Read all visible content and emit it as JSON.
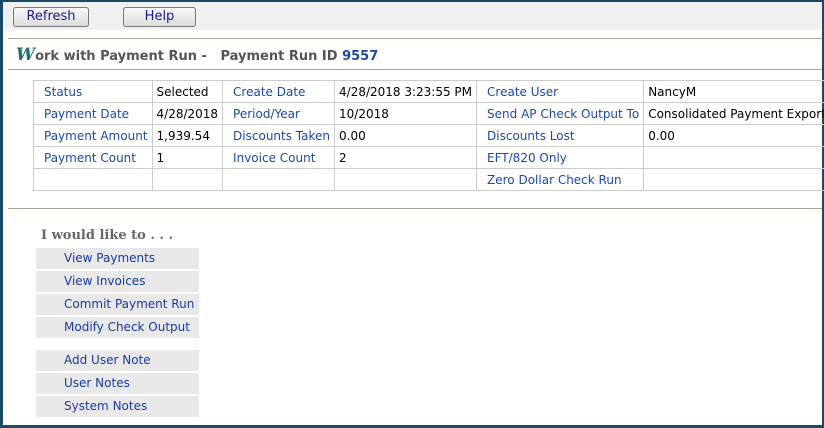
{
  "toolbar": {
    "refresh": "Refresh",
    "help": "Help"
  },
  "header": {
    "title_initial": "W",
    "title_rest": "ork with Payment Run -",
    "id_label": "Payment Run ID",
    "id_value": "9557"
  },
  "details": [
    [
      {
        "l": "Status",
        "v": "Selected"
      },
      {
        "l": "Create Date",
        "v": "4/28/2018 3:23:55 PM"
      },
      {
        "l": "Create User",
        "v": "NancyM"
      }
    ],
    [
      {
        "l": "Payment Date",
        "v": "4/28/2018"
      },
      {
        "l": "Period/Year",
        "v": "10/2018"
      },
      {
        "l": "Send AP Check Output To",
        "v": "Consolidated Payment Export"
      }
    ],
    [
      {
        "l": "Payment Amount",
        "v": "1,939.54"
      },
      {
        "l": "Discounts Taken",
        "v": "0.00"
      },
      {
        "l": "Discounts Lost",
        "v": "0.00"
      }
    ],
    [
      {
        "l": "Payment Count",
        "v": "1"
      },
      {
        "l": "Invoice Count",
        "v": "2"
      },
      {
        "l": "EFT/820 Only",
        "v": ""
      }
    ],
    [
      {
        "l": "",
        "v": ""
      },
      {
        "l": "",
        "v": ""
      },
      {
        "l": "Zero Dollar Check Run",
        "v": ""
      }
    ]
  ],
  "actions": {
    "heading": "I would like to . . .",
    "items": [
      "View Payments",
      "View Invoices",
      "Commit Payment Run",
      "Modify Check Output",
      "Add User Note",
      "User Notes",
      "System Notes"
    ]
  }
}
